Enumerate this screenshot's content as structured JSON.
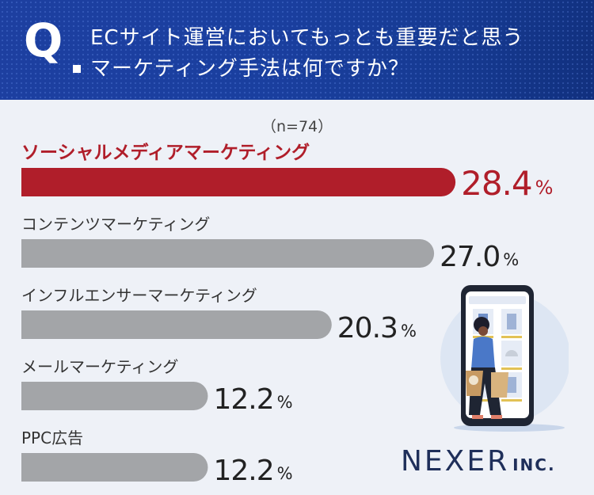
{
  "question": {
    "mark": "Q",
    "line1": "ECサイト運営においてもっとも重要だと思う",
    "line2": "マーケティング手法は何ですか？"
  },
  "sample_size": "（n=74）",
  "brand": {
    "name": "NEXER",
    "suffix": "INC."
  },
  "colors": {
    "highlight": "#b01e2a",
    "bar": "#a3a5a8",
    "header": "#1a3f9f"
  },
  "chart_data": {
    "type": "bar",
    "orientation": "horizontal",
    "categories": [
      "ソーシャルメディアマーケティング",
      "コンテンツマーケティング",
      "インフルエンサーマーケティング",
      "メールマーケティング",
      "PPC広告"
    ],
    "values": [
      28.4,
      27.0,
      20.3,
      12.2,
      12.2
    ],
    "value_labels": [
      "28.4",
      "27.0",
      "20.3",
      "12.2",
      "12.2"
    ],
    "unit": "%",
    "highlight_index": 0
  }
}
